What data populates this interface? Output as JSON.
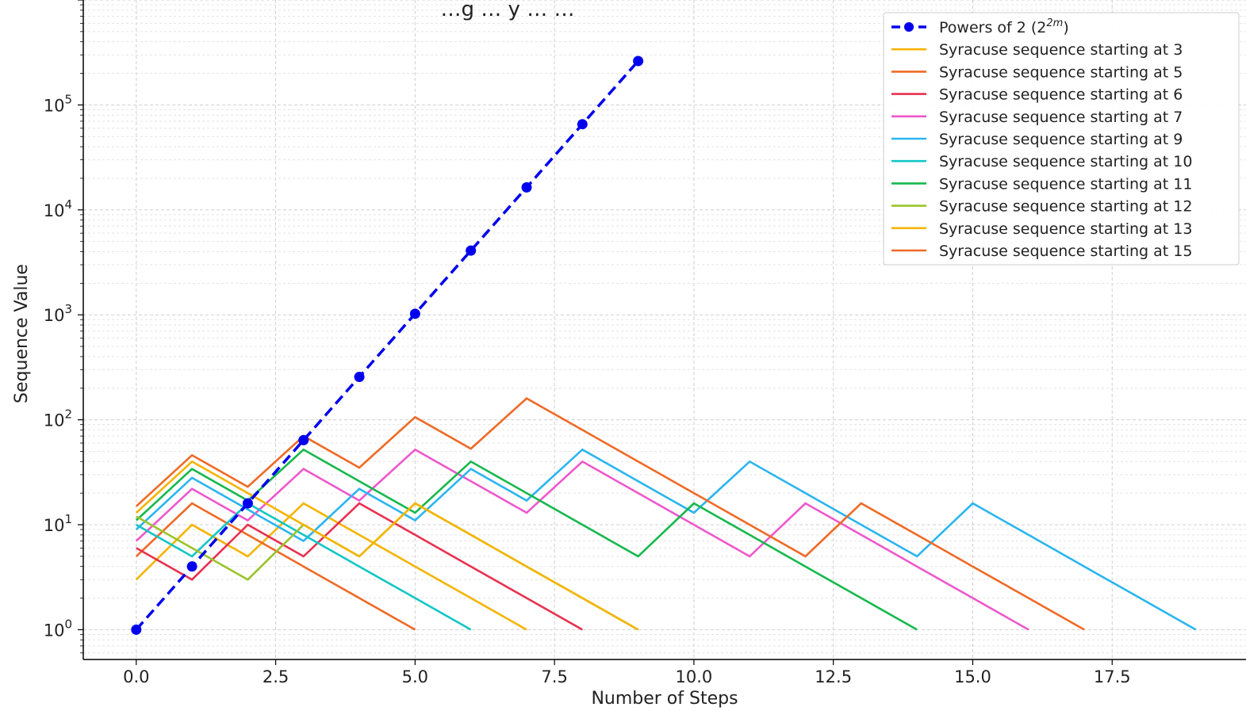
{
  "chart_data": {
    "type": "line",
    "title": "…g … y … …",
    "xlabel": "Number of Steps",
    "ylabel": "Sequence Value",
    "xlim": [
      -0.95,
      19.9
    ],
    "ylim": [
      0.52,
      1000000
    ],
    "yscale": "log",
    "grid": true,
    "legend_position": "top-right",
    "xticks": [
      0.0,
      2.5,
      5.0,
      7.5,
      10.0,
      12.5,
      15.0,
      17.5
    ],
    "xtick_labels": [
      "0.0",
      "2.5",
      "5.0",
      "7.5",
      "10.0",
      "12.5",
      "15.0",
      "17.5"
    ],
    "yticks": [
      1,
      10,
      100,
      1000,
      10000,
      100000
    ],
    "ytick_labels": [
      {
        "base": "10",
        "exp": "0"
      },
      {
        "base": "10",
        "exp": "1"
      },
      {
        "base": "10",
        "exp": "2"
      },
      {
        "base": "10",
        "exp": "3"
      },
      {
        "base": "10",
        "exp": "4"
      },
      {
        "base": "10",
        "exp": "5"
      }
    ],
    "series": [
      {
        "name": "Powers of 2 (2^{2m})",
        "legend_main": "Powers of 2 (2",
        "legend_sup": "2m",
        "legend_end": ")",
        "color": "#0000ee",
        "dashed": true,
        "markers": true,
        "x": [
          0,
          1,
          2,
          3,
          4,
          5,
          6,
          7,
          8,
          9
        ],
        "values": [
          1,
          4,
          16,
          64,
          256,
          1024,
          4096,
          16384,
          65536,
          262144
        ]
      },
      {
        "name": "Syracuse sequence starting at 3",
        "color": "#f5b400",
        "values": [
          3,
          10,
          5,
          16,
          8,
          4,
          2,
          1
        ]
      },
      {
        "name": "Syracuse sequence starting at 5",
        "color": "#ef6a26",
        "values": [
          5,
          16,
          8,
          4,
          2,
          1
        ]
      },
      {
        "name": "Syracuse sequence starting at 6",
        "color": "#e8314f",
        "values": [
          6,
          3,
          10,
          5,
          16,
          8,
          4,
          2,
          1
        ]
      },
      {
        "name": "Syracuse sequence starting at 7",
        "color": "#ee58cc",
        "values": [
          7,
          22,
          11,
          34,
          17,
          52,
          26,
          13,
          40,
          20,
          10,
          5,
          16,
          8,
          4,
          2,
          1
        ]
      },
      {
        "name": "Syracuse sequence starting at 9",
        "color": "#2bb5f0",
        "values": [
          9,
          28,
          14,
          7,
          22,
          11,
          34,
          17,
          52,
          26,
          13,
          40,
          20,
          10,
          5,
          16,
          8,
          4,
          2,
          1
        ]
      },
      {
        "name": "Syracuse sequence starting at 10",
        "color": "#13c6c6",
        "values": [
          10,
          5,
          16,
          8,
          4,
          2,
          1
        ]
      },
      {
        "name": "Syracuse sequence starting at 11",
        "color": "#16b84c",
        "values": [
          11,
          34,
          17,
          52,
          26,
          13,
          40,
          20,
          10,
          5,
          16,
          8,
          4,
          2,
          1
        ]
      },
      {
        "name": "Syracuse sequence starting at 12",
        "color": "#9bc42a",
        "values": [
          12,
          6,
          3,
          10,
          5,
          16,
          8,
          4,
          2,
          1
        ]
      },
      {
        "name": "Syracuse sequence starting at 13",
        "color": "#f5b400",
        "values": [
          13,
          40,
          20,
          10,
          5,
          16,
          8,
          4,
          2,
          1
        ]
      },
      {
        "name": "Syracuse sequence starting at 15",
        "color": "#ef6a26",
        "values": [
          15,
          46,
          23,
          70,
          35,
          106,
          53,
          160,
          80,
          40,
          20,
          10,
          5,
          16,
          8,
          4,
          2,
          1
        ]
      }
    ]
  }
}
